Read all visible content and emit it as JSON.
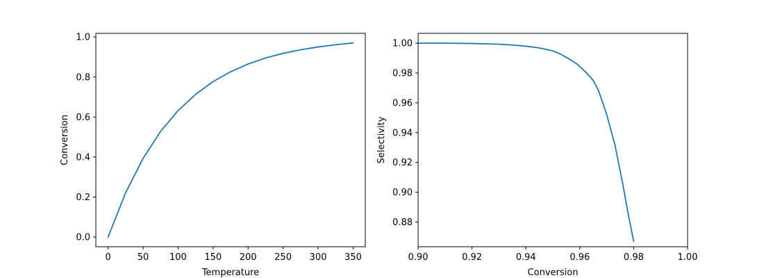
{
  "chart_data": [
    {
      "type": "line",
      "xlabel": "Temperature",
      "ylabel": "Conversion",
      "xlim": [
        -17.5,
        367.5
      ],
      "ylim": [
        -0.0485,
        1.018
      ],
      "xticks": [
        0,
        50,
        100,
        150,
        200,
        250,
        300,
        350
      ],
      "xtick_labels": [
        "0",
        "50",
        "100",
        "150",
        "200",
        "250",
        "300",
        "350"
      ],
      "yticks": [
        0.0,
        0.2,
        0.4,
        0.6,
        0.8,
        1.0
      ],
      "ytick_labels": [
        "0.0",
        "0.2",
        "0.4",
        "0.6",
        "0.8",
        "1.0"
      ],
      "grid": false,
      "line_color": "#1f77b4",
      "series": [
        {
          "x": [
            0,
            25,
            50,
            75,
            100,
            125,
            150,
            175,
            200,
            225,
            250,
            275,
            300,
            325,
            350
          ],
          "y": [
            0.0,
            0.221,
            0.393,
            0.528,
            0.632,
            0.713,
            0.777,
            0.826,
            0.865,
            0.895,
            0.918,
            0.936,
            0.95,
            0.961,
            0.97
          ]
        }
      ]
    },
    {
      "type": "line",
      "xlabel": "Conversion",
      "ylabel": "Selectivity",
      "xlim": [
        0.9,
        1.0
      ],
      "ylim": [
        0.8634,
        1.0066
      ],
      "xticks": [
        0.9,
        0.92,
        0.94,
        0.96,
        0.98,
        1.0
      ],
      "xtick_labels": [
        "0.90",
        "0.92",
        "0.94",
        "0.96",
        "0.98",
        "1.00"
      ],
      "yticks": [
        0.88,
        0.9,
        0.92,
        0.94,
        0.96,
        0.98,
        1.0
      ],
      "ytick_labels": [
        "0.88",
        "0.90",
        "0.92",
        "0.94",
        "0.96",
        "0.98",
        "1.00"
      ],
      "grid": false,
      "line_color": "#1f77b4",
      "series": [
        {
          "x": [
            0.9,
            0.91,
            0.92,
            0.93,
            0.935,
            0.94,
            0.945,
            0.95,
            0.953,
            0.956,
            0.959,
            0.962,
            0.965,
            0.967,
            0.97,
            0.973,
            0.976,
            0.978,
            0.98
          ],
          "y": [
            1.0,
            1.0,
            0.9998,
            0.9993,
            0.9988,
            0.998,
            0.9968,
            0.9948,
            0.9925,
            0.9895,
            0.986,
            0.981,
            0.975,
            0.968,
            0.952,
            0.932,
            0.905,
            0.885,
            0.867
          ]
        }
      ]
    }
  ]
}
